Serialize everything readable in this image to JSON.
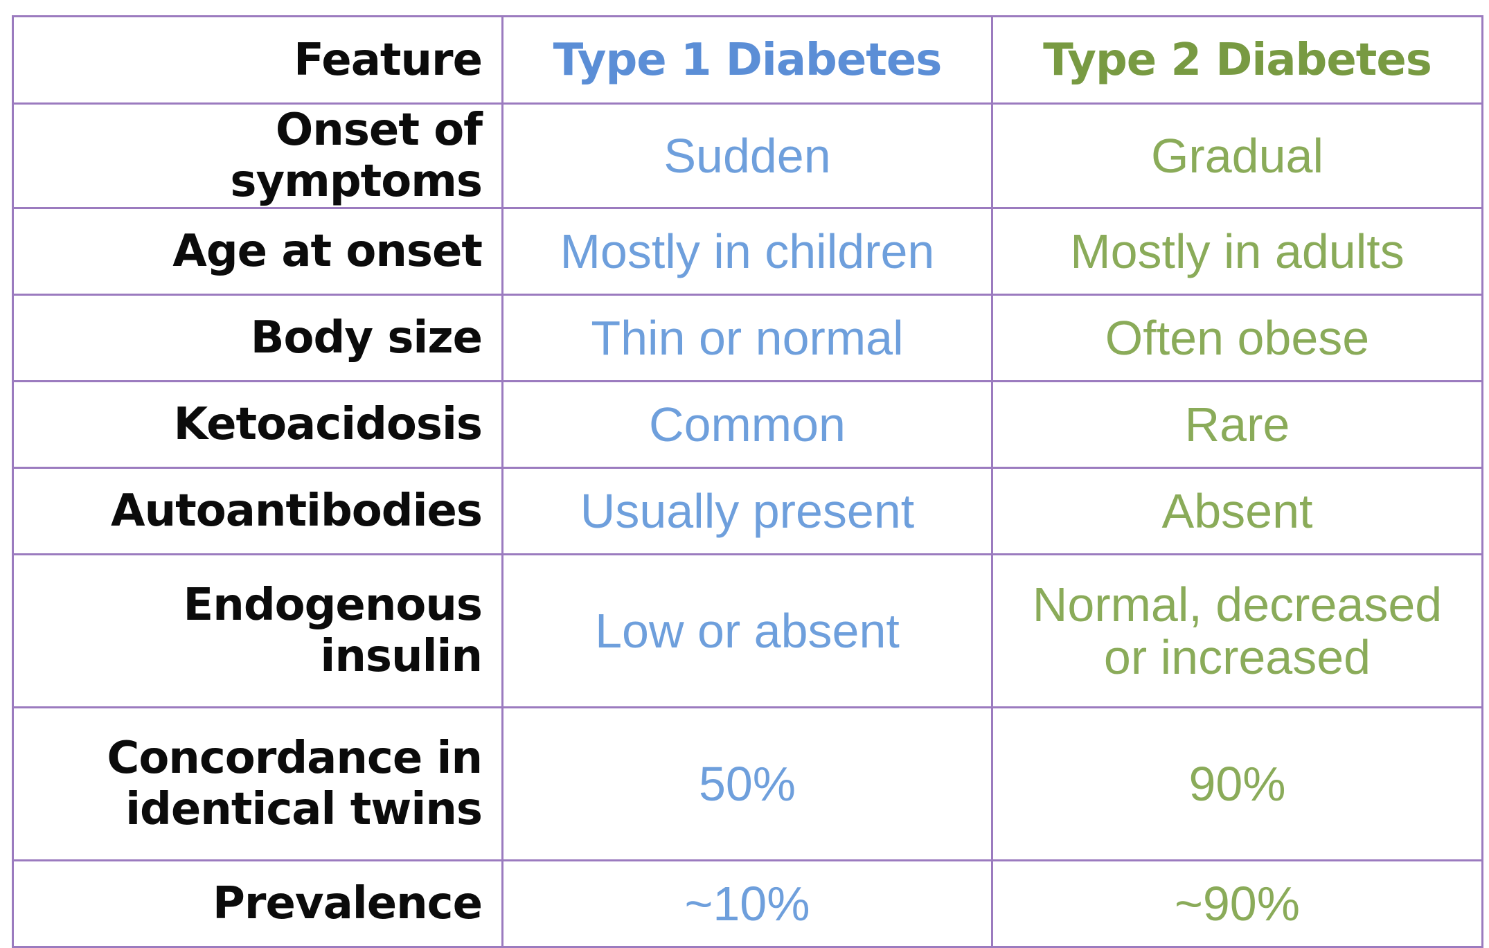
{
  "table": {
    "headers": {
      "feature": "Feature",
      "type1": "Type 1 Diabetes",
      "type2": "Type 2 Diabetes"
    },
    "rows": [
      {
        "feature": "Onset of symptoms",
        "type1": "Sudden",
        "type2": "Gradual"
      },
      {
        "feature": "Age at onset",
        "type1": "Mostly in children",
        "type2": "Mostly in adults"
      },
      {
        "feature": "Body size",
        "type1": "Thin or normal",
        "type2": "Often obese"
      },
      {
        "feature": "Ketoacidosis",
        "type1": "Common",
        "type2": "Rare"
      },
      {
        "feature": "Autoantibodies",
        "type1": "Usually present",
        "type2": "Absent"
      },
      {
        "feature": "Endogenous insulin",
        "type1": "Low or absent",
        "type2": "Normal, decreased or increased"
      },
      {
        "feature": "Concordance in identical twins",
        "type1": "50%",
        "type2": "90%"
      },
      {
        "feature": "Prevalence",
        "type1": "~10%",
        "type2": "~90%"
      }
    ]
  },
  "colors": {
    "border": "#9b7bbf",
    "type1": "#5b8ed6",
    "type2": "#789a42",
    "feature_text": "#0b0b0b"
  }
}
